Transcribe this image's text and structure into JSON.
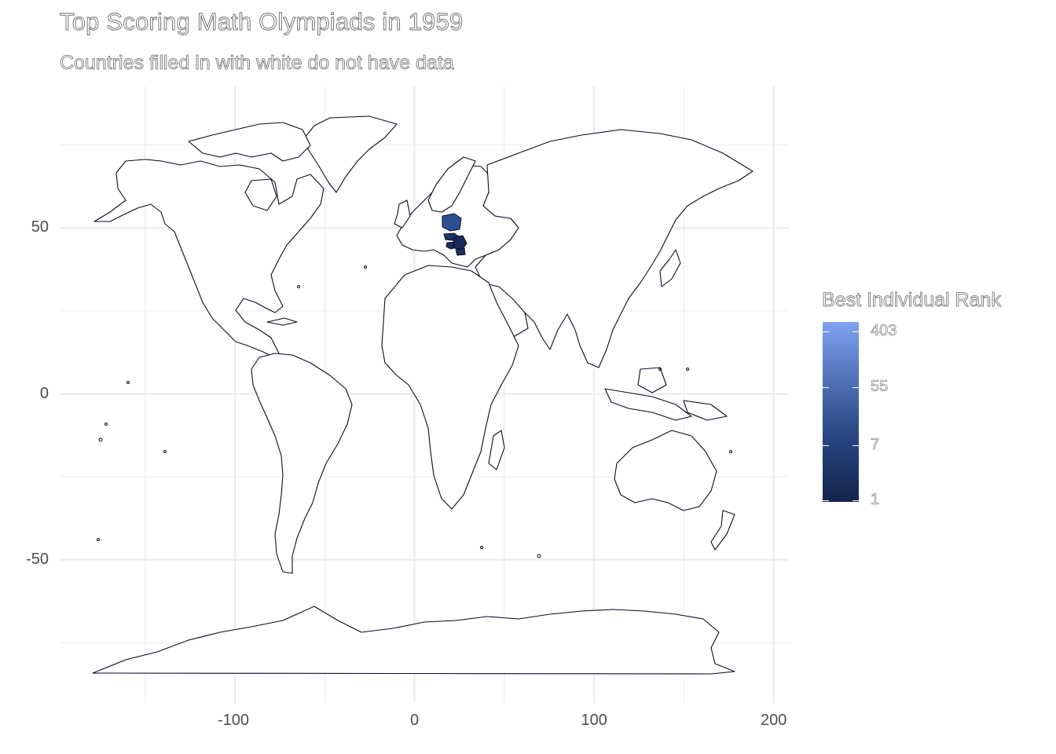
{
  "chart_data": {
    "type": "choropleth-map",
    "title": "Top Scoring Math Olympiads in 1959",
    "subtitle": "Countries filled in with white do not have data",
    "x_ticks": [
      -100,
      0,
      100,
      200
    ],
    "y_ticks": [
      50,
      0,
      -50
    ],
    "xlim": [
      -180,
      200
    ],
    "ylim": [
      -85,
      85
    ],
    "grid": "on",
    "legend": {
      "title": "Best Individual Rank",
      "placement": "right",
      "scale": "log",
      "labels": [
        "403",
        "55",
        "7",
        "1"
      ],
      "color_low": "#14244c",
      "color_high": "#7fa3f2"
    },
    "countries_with_data": [
      {
        "name": "Poland",
        "color": "#2c4f92"
      },
      {
        "name": "Czechoslovakia",
        "color": "#1e3566"
      },
      {
        "name": "Hungary",
        "color": "#1a2d5a"
      },
      {
        "name": "Romania",
        "color": "#19295a"
      },
      {
        "name": "Bulgaria",
        "color": "#1c3160"
      }
    ],
    "no_data_fill": "#ffffff",
    "border_color": "#0b0b20"
  }
}
